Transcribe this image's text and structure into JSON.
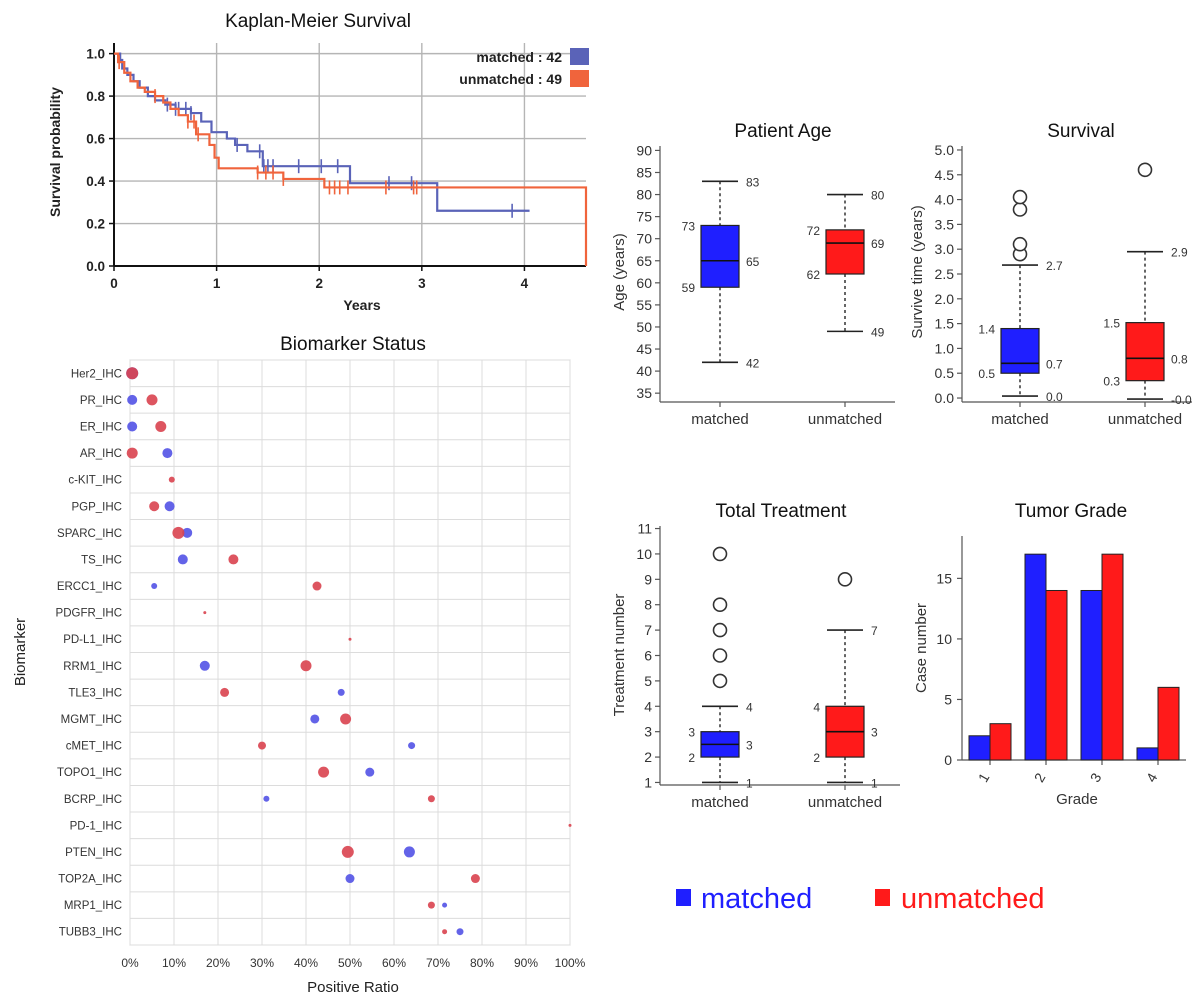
{
  "colors": {
    "matched": "#1f1fff",
    "unmatched": "#ff1a1a",
    "km_matched": "#5a63b8",
    "km_unmatched": "#f0643c",
    "bio_matched": "#5252e6",
    "bio_unmatched": "#d9434f"
  },
  "legend": {
    "matched": "matched",
    "unmatched": "unmatched"
  },
  "chart_data": [
    {
      "id": "km",
      "type": "line",
      "title": "Kaplan-Meier Survival",
      "xlabel": "Years",
      "ylabel": "Survival probability",
      "xlim": [
        0,
        4.6
      ],
      "ylim": [
        0,
        1.05
      ],
      "xticks": [
        "0",
        "1",
        "2",
        "3",
        "4"
      ],
      "yticks": [
        "0.0",
        "0.2",
        "0.4",
        "0.6",
        "0.8",
        "1.0"
      ],
      "grid": true,
      "legend_position": "top-right",
      "legend": [
        "matched : 42",
        "unmatched : 49"
      ],
      "series": [
        {
          "key": "matched",
          "x": [
            0,
            0.06,
            0.08,
            0.13,
            0.19,
            0.25,
            0.33,
            0.4,
            0.5,
            0.6,
            0.75,
            0.85,
            0.95,
            1.1,
            1.18,
            1.3,
            1.45,
            2.3,
            3.15,
            4.05
          ],
          "y": [
            1.0,
            0.97,
            0.93,
            0.9,
            0.87,
            0.84,
            0.8,
            0.78,
            0.76,
            0.74,
            0.72,
            0.68,
            0.63,
            0.6,
            0.57,
            0.54,
            0.47,
            0.39,
            0.26,
            0.26
          ],
          "censor_x": [
            0.52,
            0.6,
            0.63,
            0.7,
            0.75,
            1.2,
            1.42,
            1.46,
            1.5,
            1.55,
            1.8,
            2.02,
            2.18,
            2.68,
            2.9,
            3.88
          ]
        },
        {
          "key": "unmatched",
          "x": [
            0,
            0.04,
            0.1,
            0.16,
            0.23,
            0.3,
            0.4,
            0.48,
            0.55,
            0.63,
            0.72,
            0.8,
            0.93,
            0.98,
            1.02,
            1.4,
            1.65,
            2.05,
            4.6
          ],
          "y": [
            1.0,
            0.96,
            0.91,
            0.87,
            0.84,
            0.82,
            0.8,
            0.77,
            0.74,
            0.71,
            0.68,
            0.62,
            0.57,
            0.51,
            0.46,
            0.44,
            0.41,
            0.37,
            0.0
          ],
          "censor_x": [
            0.05,
            0.4,
            0.72,
            0.78,
            0.82,
            1.4,
            1.48,
            1.55,
            1.65,
            2.1,
            2.15,
            2.2,
            2.28,
            2.65,
            2.92,
            2.95
          ]
        }
      ]
    },
    {
      "id": "biomarker",
      "type": "scatter",
      "title": "Biomarker Status",
      "xlabel": "Positive Ratio",
      "ylabel": "Biomarker",
      "xlim": [
        0,
        100
      ],
      "xticks": [
        "0%",
        "10%",
        "20%",
        "30%",
        "40%",
        "50%",
        "60%",
        "70%",
        "80%",
        "90%",
        "100%"
      ],
      "grid": true,
      "categories": [
        "Her2_IHC",
        "PR_IHC",
        "ER_IHC",
        "AR_IHC",
        "c-KIT_IHC",
        "PGP_IHC",
        "SPARC_IHC",
        "TS_IHC",
        "ERCC1_IHC",
        "PDGFR_IHC",
        "PD-L1_IHC",
        "RRM1_IHC",
        "TLE3_IHC",
        "MGMT_IHC",
        "cMET_IHC",
        "TOPO1_IHC",
        "BCRP_IHC",
        "PD-1_IHC",
        "PTEN_IHC",
        "TOP2A_IHC",
        "MRP1_IHC",
        "TUBB3_IHC"
      ],
      "series": [
        {
          "key": "matched",
          "x": [
            0.5,
            0.5,
            0.5,
            8.5,
            null,
            9,
            13,
            12,
            5.5,
            null,
            null,
            17,
            48,
            42,
            64,
            54.5,
            31,
            null,
            63.5,
            50,
            71.5,
            75
          ],
          "size": [
            6,
            5,
            5,
            5,
            0,
            5,
            5,
            5,
            3,
            0,
            0,
            5,
            3.5,
            4.5,
            3.5,
            4.5,
            3,
            0,
            5.5,
            4.5,
            2.5,
            3.5
          ]
        },
        {
          "key": "unmatched",
          "x": [
            0.5,
            5,
            7,
            0.5,
            9.5,
            5.5,
            11,
            23.5,
            42.5,
            17,
            50,
            40,
            21.5,
            49,
            30,
            44,
            68.5,
            100,
            49.5,
            78.5,
            68.5,
            71.5
          ],
          "size": [
            6,
            5.5,
            5.5,
            5.5,
            3,
            5,
            6,
            5,
            4.5,
            1.5,
            1.5,
            5.5,
            4.5,
            5.5,
            4,
            5.5,
            3.5,
            1.5,
            6,
            4.5,
            3.5,
            2.5
          ]
        }
      ]
    },
    {
      "id": "age",
      "type": "boxplot",
      "title": "Patient Age",
      "ylabel": "Age (years)",
      "ylim": [
        33,
        91
      ],
      "yticks": [
        "35",
        "40",
        "45",
        "50",
        "55",
        "60",
        "65",
        "70",
        "75",
        "80",
        "85",
        "90"
      ],
      "categories": [
        "matched",
        "unmatched"
      ],
      "boxes": [
        {
          "key": "matched",
          "whisker_low": 42,
          "q1": 59,
          "median": 65,
          "q3": 73,
          "whisker_high": 83,
          "outliers": [],
          "labels": {
            "q3": "73",
            "q1": "59",
            "median": "65",
            "high": "83",
            "low": "42"
          }
        },
        {
          "key": "unmatched",
          "whisker_low": 49,
          "q1": 62,
          "median": 69,
          "q3": 72,
          "whisker_high": 80,
          "outliers": [],
          "labels": {
            "q3": "72",
            "q1": "62",
            "median": "69",
            "high": "80",
            "low": "49"
          }
        }
      ]
    },
    {
      "id": "survival",
      "type": "boxplot",
      "title": "Survival",
      "ylabel": "Survive time (years)",
      "ylim": [
        -0.08,
        5.08
      ],
      "yticks": [
        "0.0",
        "0.5",
        "1.0",
        "1.5",
        "2.0",
        "2.5",
        "3.0",
        "3.5",
        "4.0",
        "4.5",
        "5.0"
      ],
      "categories": [
        "matched",
        "unmatched"
      ],
      "boxes": [
        {
          "key": "matched",
          "whisker_low": 0.04,
          "q1": 0.5,
          "median": 0.7,
          "q3": 1.4,
          "whisker_high": 2.68,
          "outliers": [
            2.9,
            3.1,
            3.8,
            4.05
          ],
          "labels": {
            "q3": "1.4",
            "q1": "0.5",
            "median": "0.7",
            "high": "2.7",
            "low": "0.0"
          }
        },
        {
          "key": "unmatched",
          "whisker_low": -0.02,
          "q1": 0.35,
          "median": 0.8,
          "q3": 1.52,
          "whisker_high": 2.95,
          "outliers": [
            4.6
          ],
          "labels": {
            "q3": "1.5",
            "q1": "0.3",
            "median": "0.8",
            "high": "2.9",
            "low": "-0.0"
          }
        }
      ]
    },
    {
      "id": "treatment",
      "type": "boxplot",
      "title": "Total Treatment",
      "ylabel": "Treatment number",
      "ylim": [
        0.9,
        11.1
      ],
      "yticks": [
        "1",
        "2",
        "3",
        "4",
        "5",
        "6",
        "7",
        "8",
        "9",
        "10",
        "11"
      ],
      "categories": [
        "matched",
        "unmatched"
      ],
      "boxes": [
        {
          "key": "matched",
          "whisker_low": 1,
          "q1": 2,
          "median": 2.5,
          "q3": 3,
          "whisker_high": 4,
          "outliers": [
            5,
            6,
            7,
            8,
            10
          ],
          "labels": {
            "q3": "3",
            "q1": "2",
            "median": "3",
            "high": "4",
            "low": "1"
          }
        },
        {
          "key": "unmatched",
          "whisker_low": 1,
          "q1": 2,
          "median": 3,
          "q3": 4,
          "whisker_high": 7,
          "outliers": [
            9
          ],
          "labels": {
            "q3": "4",
            "q1": "2",
            "median": "3",
            "high": "7",
            "low": "1"
          }
        }
      ]
    },
    {
      "id": "grade",
      "type": "bar",
      "title": "Tumor Grade",
      "xlabel": "Grade",
      "ylabel": "Case number",
      "ylim": [
        0,
        18.5
      ],
      "yticks": [
        "0",
        "5",
        "10",
        "15"
      ],
      "categories": [
        "1",
        "2",
        "3",
        "4"
      ],
      "series": [
        {
          "key": "matched",
          "values": [
            2,
            17,
            14,
            1
          ]
        },
        {
          "key": "unmatched",
          "values": [
            3,
            14,
            17,
            6
          ]
        }
      ]
    }
  ]
}
